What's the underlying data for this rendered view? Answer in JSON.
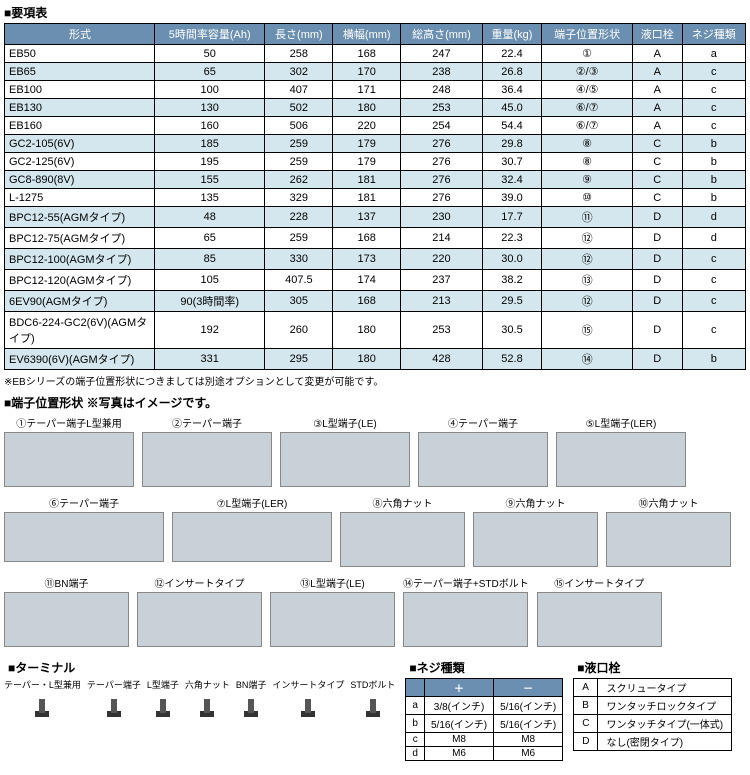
{
  "titles": {
    "spec": "■要項表",
    "terminal_shape": "■端子位置形状 ※写真はイメージです。",
    "terminal": "■ターミナル",
    "screw": "■ネジ種類",
    "cap": "■液口栓"
  },
  "columns": [
    "形式",
    "5時間率容量(Ah)",
    "長さ(mm)",
    "横幅(mm)",
    "総高さ(mm)",
    "重量(kg)",
    "端子位置形状",
    "液口栓",
    "ネジ種類"
  ],
  "rows": [
    {
      "m": "EB50",
      "c": [
        "50",
        "258",
        "168",
        "247",
        "22.4",
        "①",
        "A",
        "a"
      ],
      "alt": false
    },
    {
      "m": "EB65",
      "c": [
        "65",
        "302",
        "170",
        "238",
        "26.8",
        "②/③",
        "A",
        "c"
      ],
      "alt": true
    },
    {
      "m": "EB100",
      "c": [
        "100",
        "407",
        "171",
        "248",
        "36.4",
        "④/⑤",
        "A",
        "c"
      ],
      "alt": false
    },
    {
      "m": "EB130",
      "c": [
        "130",
        "502",
        "180",
        "253",
        "45.0",
        "⑥/⑦",
        "A",
        "c"
      ],
      "alt": true
    },
    {
      "m": "EB160",
      "c": [
        "160",
        "506",
        "220",
        "254",
        "54.4",
        "⑥/⑦",
        "A",
        "c"
      ],
      "alt": false
    },
    {
      "m": "GC2-105(6V)",
      "c": [
        "185",
        "259",
        "179",
        "276",
        "29.8",
        "⑧",
        "C",
        "b"
      ],
      "alt": true
    },
    {
      "m": "GC2-125(6V)",
      "c": [
        "195",
        "259",
        "179",
        "276",
        "30.7",
        "⑧",
        "C",
        "b"
      ],
      "alt": false
    },
    {
      "m": "GC8-890(8V)",
      "c": [
        "155",
        "262",
        "181",
        "276",
        "32.4",
        "⑨",
        "C",
        "b"
      ],
      "alt": true
    },
    {
      "m": "L-1275",
      "c": [
        "135",
        "329",
        "181",
        "276",
        "39.0",
        "⑩",
        "C",
        "b"
      ],
      "alt": false
    },
    {
      "m": "BPC12-55(AGMタイプ)",
      "c": [
        "48",
        "228",
        "137",
        "230",
        "17.7",
        "⑪",
        "D",
        "d"
      ],
      "alt": true
    },
    {
      "m": "BPC12-75(AGMタイプ)",
      "c": [
        "65",
        "259",
        "168",
        "214",
        "22.3",
        "⑫",
        "D",
        "d"
      ],
      "alt": false
    },
    {
      "m": "BPC12-100(AGMタイプ)",
      "c": [
        "85",
        "330",
        "173",
        "220",
        "30.0",
        "⑫",
        "D",
        "c"
      ],
      "alt": true
    },
    {
      "m": "BPC12-120(AGMタイプ)",
      "c": [
        "105",
        "407.5",
        "174",
        "237",
        "38.2",
        "⑬",
        "D",
        "c"
      ],
      "alt": false
    },
    {
      "m": "6EV90(AGMタイプ)",
      "c": [
        "90(3時間率)",
        "305",
        "168",
        "213",
        "29.5",
        "⑫",
        "D",
        "c"
      ],
      "alt": true
    },
    {
      "m": "BDC6-224-GC2(6V)(AGMタイプ)",
      "c": [
        "192",
        "260",
        "180",
        "253",
        "30.5",
        "⑮",
        "D",
        "c"
      ],
      "alt": false
    },
    {
      "m": "EV6390(6V)(AGMタイプ)",
      "c": [
        "331",
        "295",
        "180",
        "428",
        "52.8",
        "⑭",
        "D",
        "b"
      ],
      "alt": true
    }
  ],
  "note": "※EBシリーズの端子位置形状につきましては別途オプションとして変更が可能です。",
  "term_shapes": [
    [
      {
        "n": "①テーパー端子L型兼用",
        "w": "term-w1"
      },
      {
        "n": "②テーパー端子",
        "w": "term-w1"
      },
      {
        "n": "③L型端子(LE)",
        "w": "term-w1"
      },
      {
        "n": "④テーパー端子",
        "w": "term-w1"
      },
      {
        "n": "⑤L型端子(LER)",
        "w": "term-w1"
      }
    ],
    [
      {
        "n": "⑥テーパー端子",
        "w": "term-w2"
      },
      {
        "n": "⑦L型端子(LER)",
        "w": "term-w2"
      },
      {
        "n": "⑧六角ナット",
        "w": "term-w3"
      },
      {
        "n": "⑨六角ナット",
        "w": "term-w3"
      },
      {
        "n": "⑩六角ナット",
        "w": "term-w3"
      }
    ],
    [
      {
        "n": "⑪BN端子",
        "w": "term-w3"
      },
      {
        "n": "⑫インサートタイプ",
        "w": "term-w3"
      },
      {
        "n": "⑬L型端子(LE)",
        "w": "term-w3"
      },
      {
        "n": "⑭テーパー端子+STDボルト",
        "w": "term-w3"
      },
      {
        "n": "⑮インサートタイプ",
        "w": "term-w3"
      }
    ]
  ],
  "terminal_types": [
    "テーパー・L型兼用",
    "テーパー端子",
    "L型端子",
    "六角ナット",
    "BN端子",
    "インサートタイプ",
    "STDボルト"
  ],
  "screw_table": {
    "headers": [
      "",
      "＋",
      "－"
    ],
    "rows": [
      [
        "a",
        "3/8(インチ)",
        "5/16(インチ)"
      ],
      [
        "b",
        "5/16(インチ)",
        "5/16(インチ)"
      ],
      [
        "c",
        "M8",
        "M8"
      ],
      [
        "d",
        "M6",
        "M6"
      ]
    ]
  },
  "cap_table": [
    [
      "A",
      "スクリュータイプ"
    ],
    [
      "B",
      "ワンタッチロックタイプ"
    ],
    [
      "C",
      "ワンタッチタイプ(一体式)"
    ],
    [
      "D",
      "なし(密閉タイプ)"
    ]
  ]
}
